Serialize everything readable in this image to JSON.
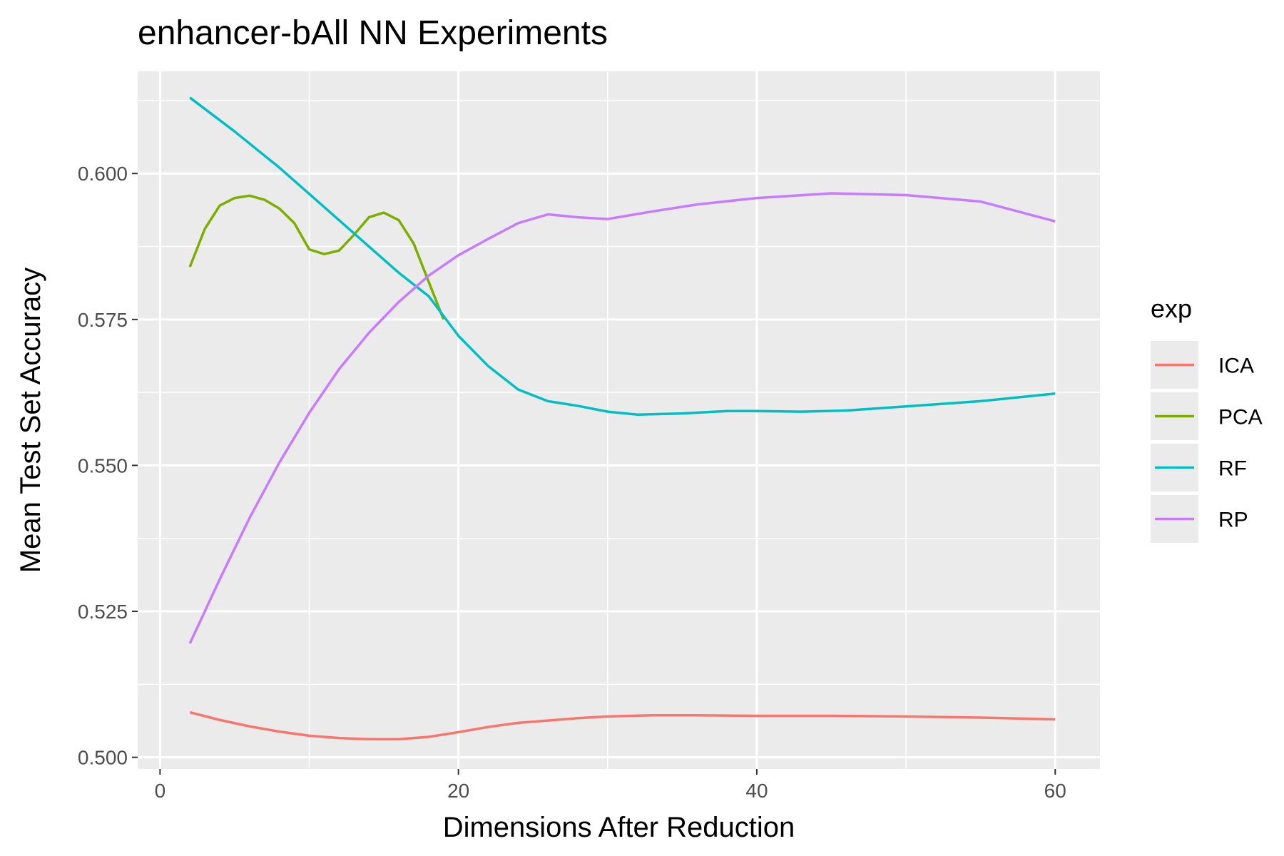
{
  "chart_data": {
    "type": "line",
    "title": "enhancer-bAll NN Experiments",
    "xlabel": "Dimensions After Reduction",
    "ylabel": "Mean Test Set Accuracy",
    "xlim": [
      -1.5,
      63
    ],
    "ylim": [
      0.498,
      0.6175
    ],
    "x_ticks": [
      0,
      20,
      40,
      60
    ],
    "x_tick_labels": [
      "0",
      "20",
      "40",
      "60"
    ],
    "y_ticks": [
      0.5,
      0.525,
      0.55,
      0.575,
      0.6
    ],
    "y_tick_labels": [
      "0.500",
      "0.525",
      "0.550",
      "0.575",
      "0.600"
    ],
    "grid": true,
    "legend_title": "exp",
    "legend_position": "right",
    "series": [
      {
        "name": "ICA",
        "color": "#F8766D",
        "x": [
          2,
          4,
          6,
          8,
          10,
          12,
          14,
          16,
          18,
          20,
          22,
          24,
          26,
          28,
          30,
          33,
          36,
          40,
          45,
          50,
          55,
          60
        ],
        "y": [
          0.5077,
          0.5064,
          0.5053,
          0.5044,
          0.5037,
          0.5033,
          0.5031,
          0.5031,
          0.5035,
          0.5043,
          0.5052,
          0.5059,
          0.5063,
          0.5067,
          0.507,
          0.5072,
          0.5072,
          0.5071,
          0.5071,
          0.507,
          0.5068,
          0.5065
        ]
      },
      {
        "name": "PCA",
        "color": "#7CAE00",
        "x": [
          2,
          3,
          4,
          5,
          6,
          7,
          8,
          9,
          10,
          11,
          12,
          13,
          14,
          15,
          16,
          17,
          18,
          19
        ],
        "y": [
          0.584,
          0.5905,
          0.5945,
          0.5958,
          0.5962,
          0.5955,
          0.594,
          0.5915,
          0.587,
          0.5862,
          0.5868,
          0.5895,
          0.5925,
          0.5933,
          0.592,
          0.588,
          0.5815,
          0.575
        ]
      },
      {
        "name": "RF",
        "color": "#00BFC4",
        "x": [
          2,
          5,
          8,
          10,
          12,
          14,
          16,
          18,
          20,
          22,
          24,
          26,
          28,
          30,
          32,
          35,
          38,
          40,
          43,
          46,
          50,
          55,
          60
        ],
        "y": [
          0.613,
          0.6072,
          0.601,
          0.5965,
          0.592,
          0.5875,
          0.583,
          0.579,
          0.5722,
          0.567,
          0.563,
          0.561,
          0.5602,
          0.5592,
          0.5587,
          0.5589,
          0.5593,
          0.5593,
          0.5592,
          0.5594,
          0.5601,
          0.561,
          0.5623
        ]
      },
      {
        "name": "RP",
        "color": "#C77CFF",
        "x": [
          2,
          4,
          6,
          8,
          10,
          12,
          14,
          16,
          18,
          20,
          22,
          24,
          26,
          28,
          30,
          33,
          36,
          40,
          45,
          50,
          55,
          60
        ],
        "y": [
          0.5195,
          0.5305,
          0.541,
          0.5505,
          0.559,
          0.5665,
          0.5727,
          0.578,
          0.5825,
          0.586,
          0.5888,
          0.5915,
          0.593,
          0.5925,
          0.5922,
          0.5935,
          0.5947,
          0.5958,
          0.5966,
          0.5963,
          0.5952,
          0.5918
        ]
      }
    ]
  }
}
